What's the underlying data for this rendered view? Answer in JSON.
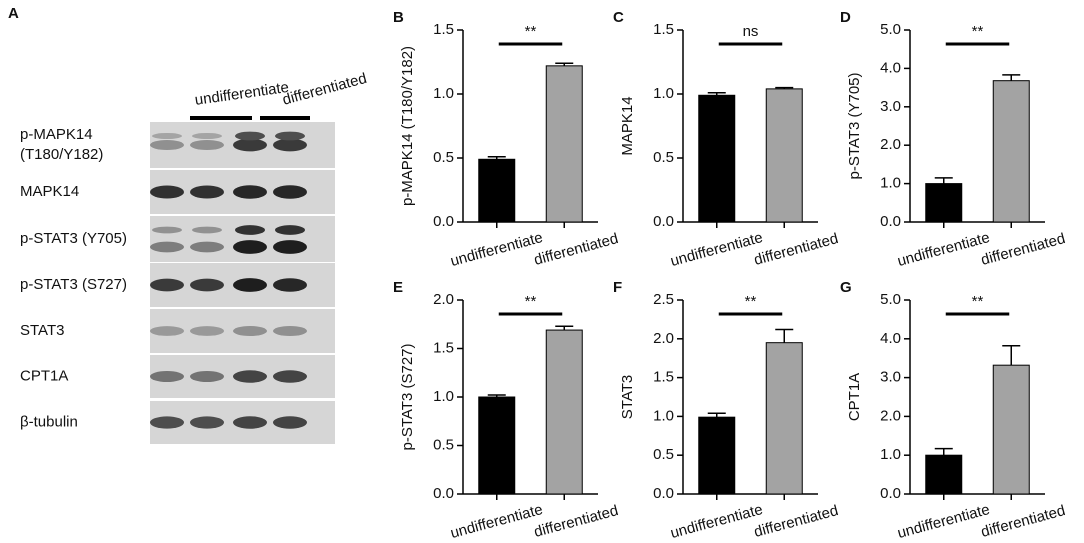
{
  "blot": {
    "label": "A",
    "groups": [
      "undifferentiate",
      "differentiated"
    ],
    "rows": [
      [
        "p-MAPK14",
        "(T180/Y182)"
      ],
      [
        "MAPK14"
      ],
      [
        "p-STAT3 (Y705)"
      ],
      [
        "p-STAT3 (S727)"
      ],
      [
        "STAT3"
      ],
      [
        "CPT1A"
      ],
      [
        "β-tubulin"
      ]
    ]
  },
  "chart_data": [
    {
      "type": "bar",
      "panel": "B",
      "ylabel": "p-MAPK14 (T180/Y182)",
      "significance": "**",
      "categories": [
        "undifferentiate",
        "differentiated"
      ],
      "colors": [
        "#000000",
        "#a3a3a3"
      ],
      "values": [
        0.49,
        1.22
      ],
      "errors": [
        0.02,
        0.02
      ],
      "ylim": [
        0,
        1.5
      ],
      "yticks": [
        {
          "value": 0,
          "label": "0.0"
        },
        0.5,
        {
          "value": 1,
          "label": "1.0"
        },
        1.5
      ]
    },
    {
      "type": "bar",
      "panel": "C",
      "ylabel": "MAPK14",
      "significance": "ns",
      "categories": [
        "undifferentiate",
        "differentiated"
      ],
      "colors": [
        "#000000",
        "#a3a3a3"
      ],
      "values": [
        0.99,
        1.04
      ],
      "errors": [
        0.02,
        0.01
      ],
      "ylim": [
        0,
        1.5
      ],
      "yticks": [
        {
          "value": 0,
          "label": "0.0"
        },
        0.5,
        {
          "value": 1,
          "label": "1.0"
        },
        1.5
      ]
    },
    {
      "type": "bar",
      "panel": "D",
      "ylabel": "p-STAT3 (Y705)",
      "significance": "**",
      "categories": [
        "undifferentiate",
        "differentiated"
      ],
      "colors": [
        "#000000",
        "#a3a3a3"
      ],
      "values": [
        1.0,
        3.68
      ],
      "errors": [
        0.15,
        0.15
      ],
      "ylim": [
        0,
        5
      ],
      "yticks": [
        {
          "value": 0,
          "label": "0.0"
        },
        {
          "value": 1,
          "label": "1.0"
        },
        {
          "value": 2,
          "label": "2.0"
        },
        {
          "value": 3,
          "label": "3.0"
        },
        {
          "value": 4,
          "label": "4.0"
        },
        {
          "value": 5,
          "label": "5.0"
        }
      ]
    },
    {
      "type": "bar",
      "panel": "E",
      "ylabel": "p-STAT3 (S727)",
      "significance": "**",
      "categories": [
        "undifferentiate",
        "differentiated"
      ],
      "colors": [
        "#000000",
        "#a3a3a3"
      ],
      "values": [
        1.0,
        1.69
      ],
      "errors": [
        0.02,
        0.04
      ],
      "ylim": [
        0,
        2
      ],
      "yticks": [
        {
          "value": 0,
          "label": "0.0"
        },
        0.5,
        {
          "value": 1,
          "label": "1.0"
        },
        1.5,
        {
          "value": 2,
          "label": "2.0"
        }
      ]
    },
    {
      "type": "bar",
      "panel": "F",
      "ylabel": "STAT3",
      "significance": "**",
      "categories": [
        "undifferentiate",
        "differentiated"
      ],
      "colors": [
        "#000000",
        "#a3a3a3"
      ],
      "values": [
        0.99,
        1.95
      ],
      "errors": [
        0.05,
        0.17
      ],
      "ylim": [
        0,
        2.5
      ],
      "yticks": [
        {
          "value": 0,
          "label": "0.0"
        },
        0.5,
        {
          "value": 1,
          "label": "1.0"
        },
        1.5,
        {
          "value": 2,
          "label": "2.0"
        },
        2.5
      ]
    },
    {
      "type": "bar",
      "panel": "G",
      "ylabel": "CPT1A",
      "significance": "**",
      "categories": [
        "undifferentiate",
        "differentiated"
      ],
      "colors": [
        "#000000",
        "#a3a3a3"
      ],
      "values": [
        1.0,
        3.32
      ],
      "errors": [
        0.17,
        0.5
      ],
      "ylim": [
        0,
        5
      ],
      "yticks": [
        {
          "value": 0,
          "label": "0.0"
        },
        {
          "value": 1,
          "label": "1.0"
        },
        {
          "value": 2,
          "label": "2.0"
        },
        {
          "value": 3,
          "label": "3.0"
        },
        {
          "value": 4,
          "label": "4.0"
        },
        {
          "value": 5,
          "label": "5.0"
        }
      ]
    }
  ]
}
